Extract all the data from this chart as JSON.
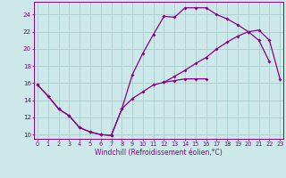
{
  "background_color": "#cce8e8",
  "line_color": "#880088",
  "grid_color": "#aacccc",
  "xlabel": "Windchill (Refroidissement éolien,°C)",
  "hours": [
    0,
    1,
    2,
    3,
    4,
    5,
    6,
    7,
    8,
    9,
    10,
    11,
    12,
    13,
    14,
    15,
    16,
    17,
    18,
    19,
    20,
    21,
    22,
    23
  ],
  "line1": [
    15.8,
    14.5,
    13.0,
    12.2,
    10.8,
    10.3,
    10.0,
    9.9,
    13.0,
    17.0,
    19.5,
    21.7,
    23.8,
    23.7,
    24.8,
    24.8,
    24.8,
    24.0,
    23.5,
    22.8,
    22.0,
    21.0,
    18.5,
    null
  ],
  "line2": [
    15.8,
    14.5,
    13.0,
    12.2,
    10.8,
    10.3,
    10.0,
    9.9,
    13.0,
    14.2,
    15.0,
    15.8,
    16.1,
    16.3,
    16.5,
    16.5,
    16.5,
    null,
    null,
    null,
    null,
    null,
    null,
    null
  ],
  "line3": [
    null,
    null,
    null,
    null,
    null,
    null,
    null,
    null,
    null,
    null,
    null,
    null,
    16.1,
    16.8,
    17.5,
    18.3,
    19.0,
    20.0,
    20.8,
    21.5,
    22.0,
    22.2,
    21.0,
    16.5
  ],
  "ylim": [
    9.5,
    25.5
  ],
  "xlim": [
    -0.3,
    23.3
  ],
  "yticks": [
    10,
    12,
    14,
    16,
    18,
    20,
    22,
    24
  ],
  "xticks": [
    0,
    1,
    2,
    3,
    4,
    5,
    6,
    7,
    8,
    9,
    10,
    11,
    12,
    13,
    14,
    15,
    16,
    17,
    18,
    19,
    20,
    21,
    22,
    23
  ],
  "tick_fontsize": 4.8,
  "xlabel_fontsize": 5.5
}
